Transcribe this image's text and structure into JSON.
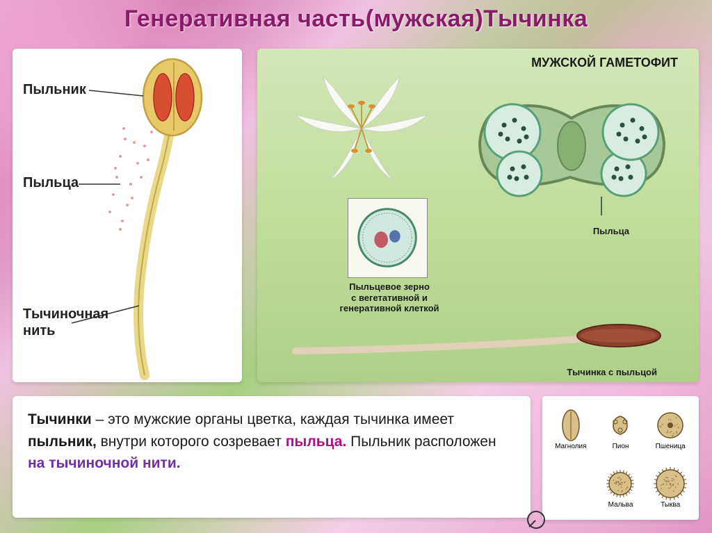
{
  "title": "Генеративная часть(мужская)Тычинка",
  "left_diagram": {
    "labels": {
      "anther": "Пыльник",
      "pollen": "Пыльца",
      "filament": "Тычиночная\nнить"
    },
    "colors": {
      "anther_fill": "#e8c868",
      "anther_inner": "#d85030",
      "filament": "#e8d888",
      "filament_edge": "#c0a850",
      "pollen_dot": "#d88888",
      "label_line": "#333333"
    }
  },
  "right_diagram": {
    "title": "МУЖСКОЙ ГАМЕТОФИТ",
    "captions": {
      "cross_section": "Пыльца",
      "pollen_grain": "Пыльцевое зерно\nс вегетативной и\nгенеративной клеткой",
      "stamen": "Тычинка с пыльцой"
    },
    "colors": {
      "lily_petal": "#f8f8f5",
      "lily_center": "#e8d060",
      "cross_wall": "#a8c898",
      "cross_wall_dark": "#688858",
      "pollen_sac": "#d8ece0",
      "pollen_sac_border": "#58a078",
      "pollen_dot": "#2a5040",
      "grain_bg": "#d0e8e0",
      "grain_border": "#488868",
      "veg_cell": "#c04050",
      "gen_cell": "#4060a0",
      "stamen_filament": "#e0d0b8",
      "stamen_anther": "#8b4028"
    }
  },
  "text_box": {
    "parts": [
      {
        "t": "Тычинки",
        "cls": "b"
      },
      {
        "t": " – это мужские органы цветка, каждая тычинка имеет ",
        "cls": ""
      },
      {
        "t": "пыльник,",
        "cls": "b"
      },
      {
        "t": " внутри которого созревает ",
        "cls": ""
      },
      {
        "t": "пыльца.",
        "cls": "c1"
      },
      {
        "t": " Пыльник расположен ",
        "cls": ""
      },
      {
        "t": "на тычиночной нити.",
        "cls": "c2"
      }
    ]
  },
  "pollen_types": {
    "items": [
      {
        "name": "Магнолия",
        "shape": "ellipse"
      },
      {
        "name": "Пион",
        "shape": "trefoil"
      },
      {
        "name": "Пшеница",
        "shape": "circle_pore"
      },
      {
        "name": "",
        "shape": "blank"
      },
      {
        "name": "Мальва",
        "shape": "spiky"
      },
      {
        "name": "Тыква",
        "shape": "spiky_large"
      }
    ],
    "colors": {
      "fill": "#d8c088",
      "stroke": "#6b5028",
      "dot": "#8b7040"
    }
  }
}
